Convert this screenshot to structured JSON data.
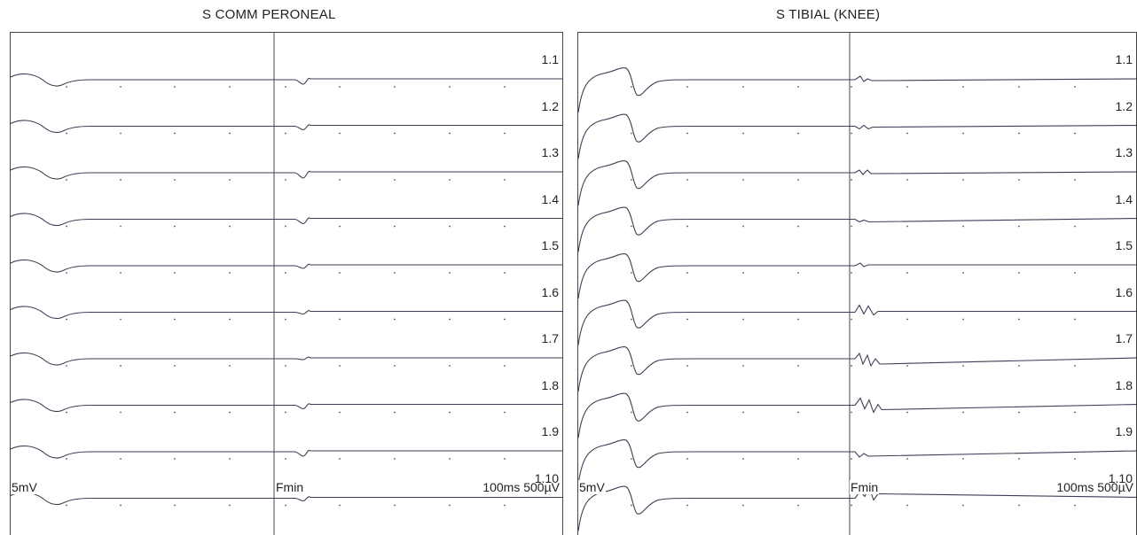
{
  "panels": [
    {
      "title": "S COMM PERONEAL",
      "labels": [
        "1.1",
        "1.2",
        "1.3",
        "1.4",
        "1.5",
        "1.6",
        "1.7",
        "1.8",
        "1.9",
        "1.10"
      ],
      "left_scale": "5mV",
      "marker": "Fmin",
      "right_scale": "100ms 500µV"
    },
    {
      "title": "S TIBIAL (KNEE)",
      "labels": [
        "1.1",
        "1.2",
        "1.3",
        "1.4",
        "1.5",
        "1.6",
        "1.7",
        "1.8",
        "1.9",
        "1.10"
      ],
      "left_scale": "5mV",
      "marker": "Fmin",
      "right_scale": "100ms 500µV"
    }
  ],
  "colors": {
    "trace": "#3a3f55",
    "border": "#444444",
    "grid_dot": "#555555"
  }
}
